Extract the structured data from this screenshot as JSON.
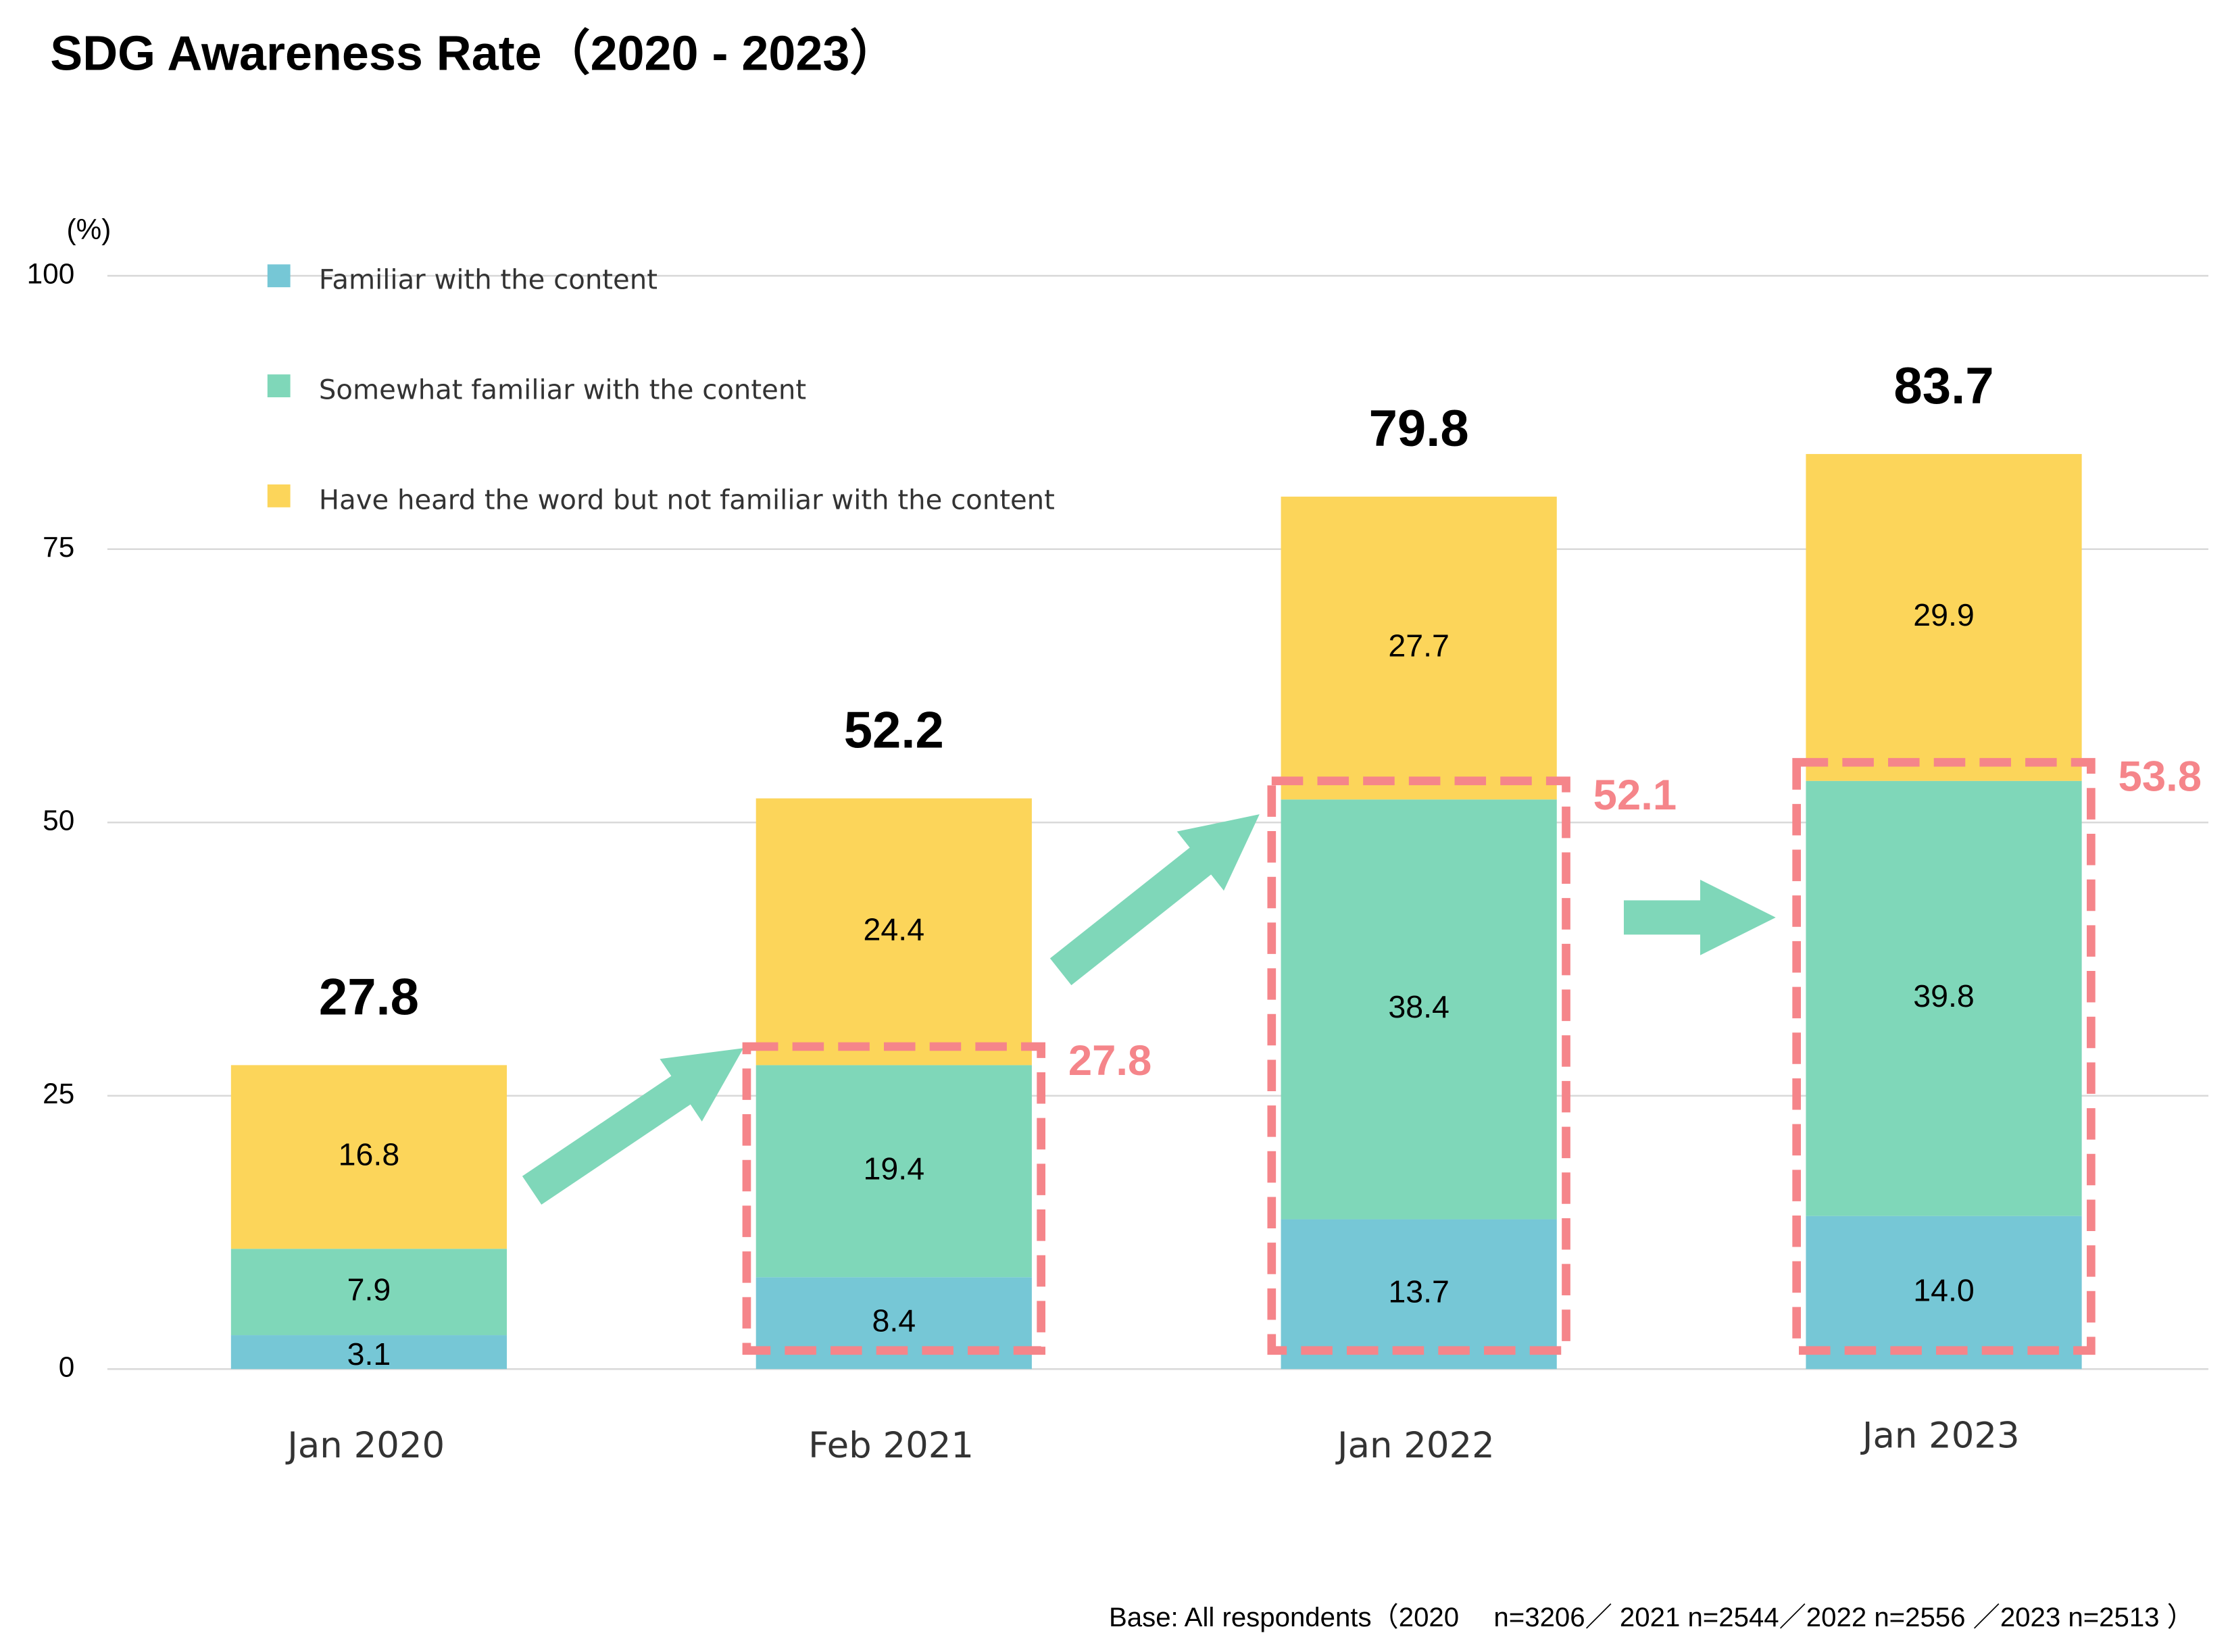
{
  "chart_data": {
    "type": "stacked-bar",
    "title": "SDG Awareness Rate（2020 - 2023）",
    "y_unit": "(%)",
    "categories": [
      "Jan 2020",
      "Feb 2021",
      "Jan 2022",
      "Jan 2023"
    ],
    "series": [
      {
        "name": "Familiar with the content",
        "color": "#76c7d6",
        "values": [
          3.1,
          8.4,
          13.7,
          14.0
        ],
        "value_labels": [
          "3.1",
          "8.4",
          "13.7",
          "14.0"
        ]
      },
      {
        "name": "Somewhat familiar with the content",
        "color": "#7fd7b9",
        "values": [
          7.9,
          19.4,
          38.4,
          39.8
        ]
      },
      {
        "name": "Have heard the word but not familiar with the content",
        "color": "#fcd55a",
        "values": [
          16.8,
          24.4,
          27.7,
          29.9
        ]
      }
    ],
    "totals": [
      27.8,
      52.2,
      79.8,
      83.7
    ],
    "highlights": [
      null,
      27.8,
      52.1,
      53.8
    ],
    "highlight_color": "#f5858a",
    "ylim": [
      0,
      100
    ],
    "yticks": [
      0,
      25,
      50,
      75,
      100
    ],
    "grid": true,
    "footnote": "Base: All respondents（2020　 n=3206／ 2021 n=2544／2022 n=2556 ／2023 n=2513 ）"
  }
}
